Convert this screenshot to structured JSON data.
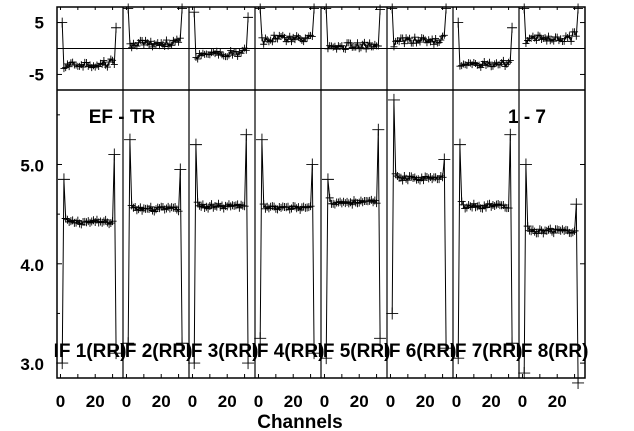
{
  "figure": {
    "corner_left": "EF - TR",
    "corner_right": "1 - 7",
    "xlabel": "Channels"
  },
  "chart_data": {
    "type": "line",
    "title": "",
    "xlabel": "Channels",
    "x_tick_labels": [
      "0",
      "20"
    ],
    "xlim": [
      -2,
      36
    ],
    "top_axis": {
      "ylim": [
        -8,
        8
      ],
      "ticks": [
        5,
        -5
      ],
      "tick_labels": [
        "5",
        "-5"
      ],
      "reference_line": 0
    },
    "bottom_axis": {
      "ylim": [
        2.85,
        5.75
      ],
      "ticks": [
        5.0,
        4.0,
        3.0
      ],
      "tick_labels": [
        "5.0",
        "4.0",
        "3.0"
      ]
    },
    "panels": [
      {
        "label": "IF 1(RR)",
        "amp_level": 4.42,
        "phase_level": -3.0,
        "amp_ch1": 3.0,
        "amp_spike_lo": 4.85,
        "amp_spike_hi": 5.1,
        "amp_tail": 3.1
      },
      {
        "label": "IF 2(RR)",
        "amp_level": 4.55,
        "phase_level": 1.0,
        "amp_ch1": 3.2,
        "amp_spike_lo": 5.25,
        "amp_spike_hi": 4.95,
        "amp_tail": 3.2
      },
      {
        "label": "IF 3(RR)",
        "amp_level": 4.58,
        "phase_level": -1.0,
        "amp_ch1": 3.0,
        "amp_spike_lo": 5.2,
        "amp_spike_hi": 5.3,
        "amp_tail": 3.0
      },
      {
        "label": "IF 4(RR)",
        "amp_level": 4.56,
        "phase_level": 2.0,
        "amp_ch1": 3.25,
        "amp_spike_lo": 5.25,
        "amp_spike_hi": 5.0,
        "amp_tail": 3.1
      },
      {
        "label": "IF 5(RR)",
        "amp_level": 4.62,
        "phase_level": 0.5,
        "amp_ch1": 3.05,
        "amp_spike_lo": 4.85,
        "amp_spike_hi": 5.35,
        "amp_tail": 3.25
      },
      {
        "label": "IF 6(RR)",
        "amp_level": 4.86,
        "phase_level": 1.5,
        "amp_ch1": 3.5,
        "amp_spike_lo": 5.65,
        "amp_spike_hi": 5.05,
        "amp_tail": 3.15
      },
      {
        "label": "IF 7(RR)",
        "amp_level": 4.58,
        "phase_level": -3.0,
        "amp_ch1": 3.05,
        "amp_spike_lo": 5.2,
        "amp_spike_hi": 5.3,
        "amp_tail": 3.2
      },
      {
        "label": "IF 8(RR)",
        "amp_level": 4.33,
        "phase_level": 2.0,
        "amp_ch1": 2.9,
        "amp_spike_lo": 5.0,
        "amp_spike_hi": 4.6,
        "amp_tail": 2.8
      }
    ]
  }
}
